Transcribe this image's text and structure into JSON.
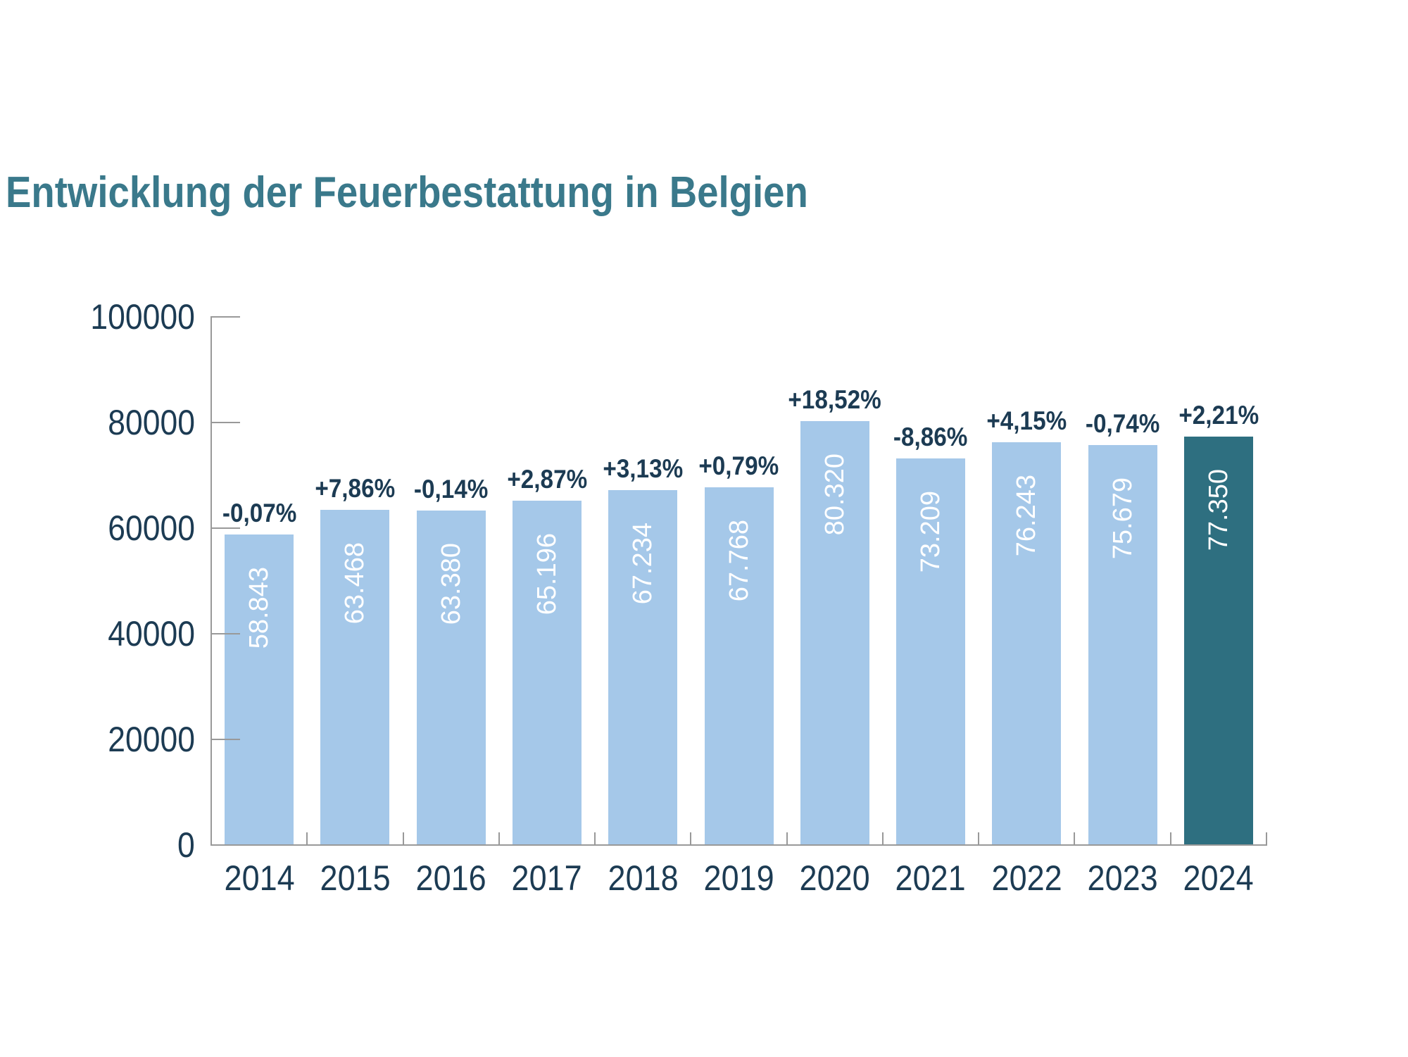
{
  "title": "Entwicklung der Feuerbestattung in Belgien",
  "colors": {
    "bar": "#A5C8E9",
    "bar_highlight": "#2E6F80",
    "title_text": "#3A798B",
    "label_text": "#1C3B53",
    "axis": "#999999",
    "bar_value_text": "#FFFFFF",
    "background": "#FFFFFF"
  },
  "chart_data": {
    "type": "bar",
    "title": "Entwicklung der Feuerbestattung in Belgien",
    "categories": [
      "2014",
      "2015",
      "2016",
      "2017",
      "2018",
      "2019",
      "2020",
      "2021",
      "2022",
      "2023",
      "2024"
    ],
    "values": [
      58843,
      63468,
      63380,
      65196,
      67234,
      67768,
      80320,
      73209,
      76243,
      75679,
      77350
    ],
    "bar_value_labels": [
      "58.843",
      "63.468",
      "63.380",
      "65.196",
      "67.234",
      "67.768",
      "80.320",
      "73.209",
      "76.243",
      "75.679",
      "77.350"
    ],
    "pct_change_labels": [
      "-0,07%",
      "+7,86%",
      "-0,14%",
      "+2,87%",
      "+3,13%",
      "+0,79%",
      "+18,52%",
      "-8,86%",
      "+4,15%",
      "-0,74%",
      "+2,21%"
    ],
    "highlight_index": 10,
    "xlabel": "",
    "ylabel": "",
    "ylim": [
      0,
      100000
    ],
    "yticks": [
      0,
      20000,
      40000,
      60000,
      80000,
      100000
    ],
    "ytick_labels": [
      "0",
      "20000",
      "40000",
      "60000",
      "80000",
      "100000"
    ],
    "grid": false,
    "legend": null
  }
}
